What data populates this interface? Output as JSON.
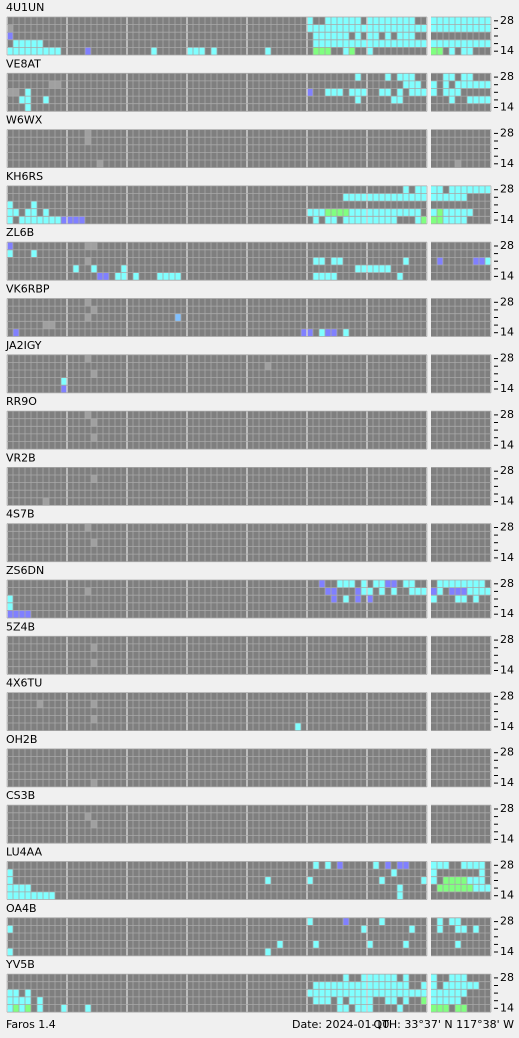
{
  "band_labels": {
    "top": "28",
    "bottom": "14"
  },
  "palette": {
    "c": "#80ffff",
    "b": "#8080ff",
    "g": "#80ff80",
    "s": "#80c0ff",
    "l": "#a0a0a0"
  },
  "stations": [
    {
      "name": "4U1UN",
      "rows": [
        "..................................................c..cccccc.cccccccc..cccccccccc",
        "l.................................................cccccccccccccccccccccccccccccc",
        "b..................................................cccccc.c.cc.c.ccc",
        ".ccccc...................................       ...ccccccccccccccccccccccccccccc",
        "ccccccccc....b..........c.....ccc.c........c.......ggg..cg..c.........gg.c.cc"
      ]
    },
    {
      "name": "VE8AT",
      "rows": [
        "..........................................................c....c.ccc....cc.cc",
        ".......ll.........................................................ccc.c.c.cccccccccc",
        "ll.c..............................................b..ccc.ccc..cc.c.cccc.ccc",
        "..cc..c...................................................c.....cc.......c..ccccc",
        "...c.............................................."
      ]
    },
    {
      "name": "W6WX",
      "rows": [
        ".............l",
        ".............l",
        "",
        "..............................................................................",
        "...............l..........................................................l"
      ]
    },
    {
      "name": "KH6RS",
      "rows": [
        "..................................................................c.cccc.ccccccc",
        "........................................................cccccccccccccccccccc",
        "c...c.............................................",
        "cc.cc.c...........................................cccggggcccccccccccc.cgccccc",
        "c.cccccccbbbb......................................c.cc.ccccccccc...cgggcccc"
      ]
    },
    {
      "name": "ZL6B",
      "rows": [
        "b............ll",
        "c...c..............................................................",
        ".............l.....................................cc.cc..........c....b.....bbcc",
        "...........c..c....c......................................cccccc",
        "...............bb.cc.c...cccc......................cccc..........c"
      ]
    },
    {
      "name": "VK6RBP",
      "rows": [
        ".............l",
        "..............l",
        ".............l..............s",
        "......ll",
        ".b...............................................bb.cbb.c"
      ]
    },
    {
      "name": "JA2IGY",
      "rows": [
        ".............l",
        "...........................................l",
        "..............l",
        ".........c",
        ".........b"
      ]
    },
    {
      "name": "RR9O",
      "rows": [
        ".............l",
        "..............l",
        "",
        "..............l",
        ""
      ]
    },
    {
      "name": "VR2B",
      "rows": [
        "",
        "..............l",
        "",
        "",
        "......l"
      ]
    },
    {
      "name": "4S7B",
      "rows": [
        ".............l",
        "",
        "..............l",
        "",
        ""
      ]
    },
    {
      "name": "ZS6DN",
      "rows": [
        "....................................................b..ccc.c.ccbb.cc...cccccccc",
        ".............l.......................................bb...bcc.c.c..cccbc.bbbcccc",
        "c.....................................................b.c.b.b.........c...cc.c",
        "c.....",
        "bbbb"
      ]
    },
    {
      "name": "5Z4B",
      "rows": [
        "",
        "..............l",
        "",
        "..............l",
        ""
      ]
    },
    {
      "name": "4X6TU",
      "rows": [
        "",
        ".....l........l",
        "",
        "..............l",
        "................................................c"
      ]
    },
    {
      "name": "OH2B",
      "rows": [
        "",
        "",
        "",
        "",
        "..............l"
      ]
    },
    {
      "name": "CS3B",
      "rows": [
        "",
        ".............l",
        "..............l",
        "",
        ""
      ]
    },
    {
      "name": "LU4AA",
      "rows": [
        "...................................................c.c.b.....c.b.bb...ccc..cccc",
        "c...............................................................c.....c.......c",
        "c..........................................c......c...........c......cc.ggggccc",
        "cccc.............................................................c.....ggggggccc",
        "cccccccc.........................................................c"
      ]
    },
    {
      "name": "OA4B",
      "rows": [
        "..................................................c.....b.....c........c.cc",
        "c..........................................................c.......c...c..cc.c",
        "..........................................................................",
        ".............................................c.....c........c.....c.......c..",
        "c..........................................c................................."
      ]
    },
    {
      "name": "YV5B",
      "rows": [
        "........................................................c..cccccc.c...c..ccc",
        "...................................................cccccccccccccccc..cc.cccccc",
        "cc.c..............................................cccccccccccccccccccccccccc",
        "cccc.c.............................................ccc.c.cccc..cc.c..gccccc",
        "cgcg.c...c...c.........................................cc.ccc....c....ggg.gg"
      ]
    }
  ],
  "footer": {
    "version": "Faros 1.4",
    "date": "Date: 2024-01-10",
    "qth": "QTH: 33°37' N  117°38' W"
  }
}
